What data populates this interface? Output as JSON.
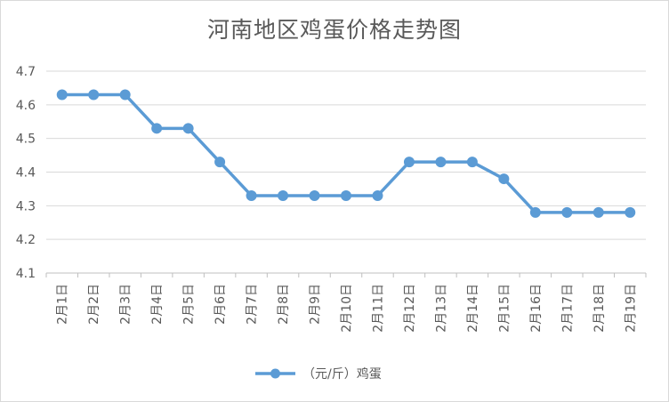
{
  "chart_data": {
    "type": "line",
    "title": "河南地区鸡蛋价格走势图",
    "categories": [
      "2月1日",
      "2月2日",
      "2月3日",
      "2月4日",
      "2月5日",
      "2月6日",
      "2月7日",
      "2月8日",
      "2月9日",
      "2月10日",
      "2月11日",
      "2月12日",
      "2月13日",
      "2月14日",
      "2月15日",
      "2月16日",
      "2月17日",
      "2月18日",
      "2月19日"
    ],
    "series": [
      {
        "name": "（元/斤）鸡蛋",
        "values": [
          4.63,
          4.63,
          4.63,
          4.53,
          4.53,
          4.43,
          4.33,
          4.33,
          4.33,
          4.33,
          4.33,
          4.43,
          4.43,
          4.43,
          4.38,
          4.28,
          4.28,
          4.28,
          4.28
        ]
      }
    ],
    "ylim": [
      4.1,
      4.7
    ],
    "yticks": [
      "4.1",
      "4.2",
      "4.3",
      "4.4",
      "4.5",
      "4.6",
      "4.7"
    ],
    "grid": true,
    "legend_position": "bottom",
    "color": "#5b9bd5"
  }
}
